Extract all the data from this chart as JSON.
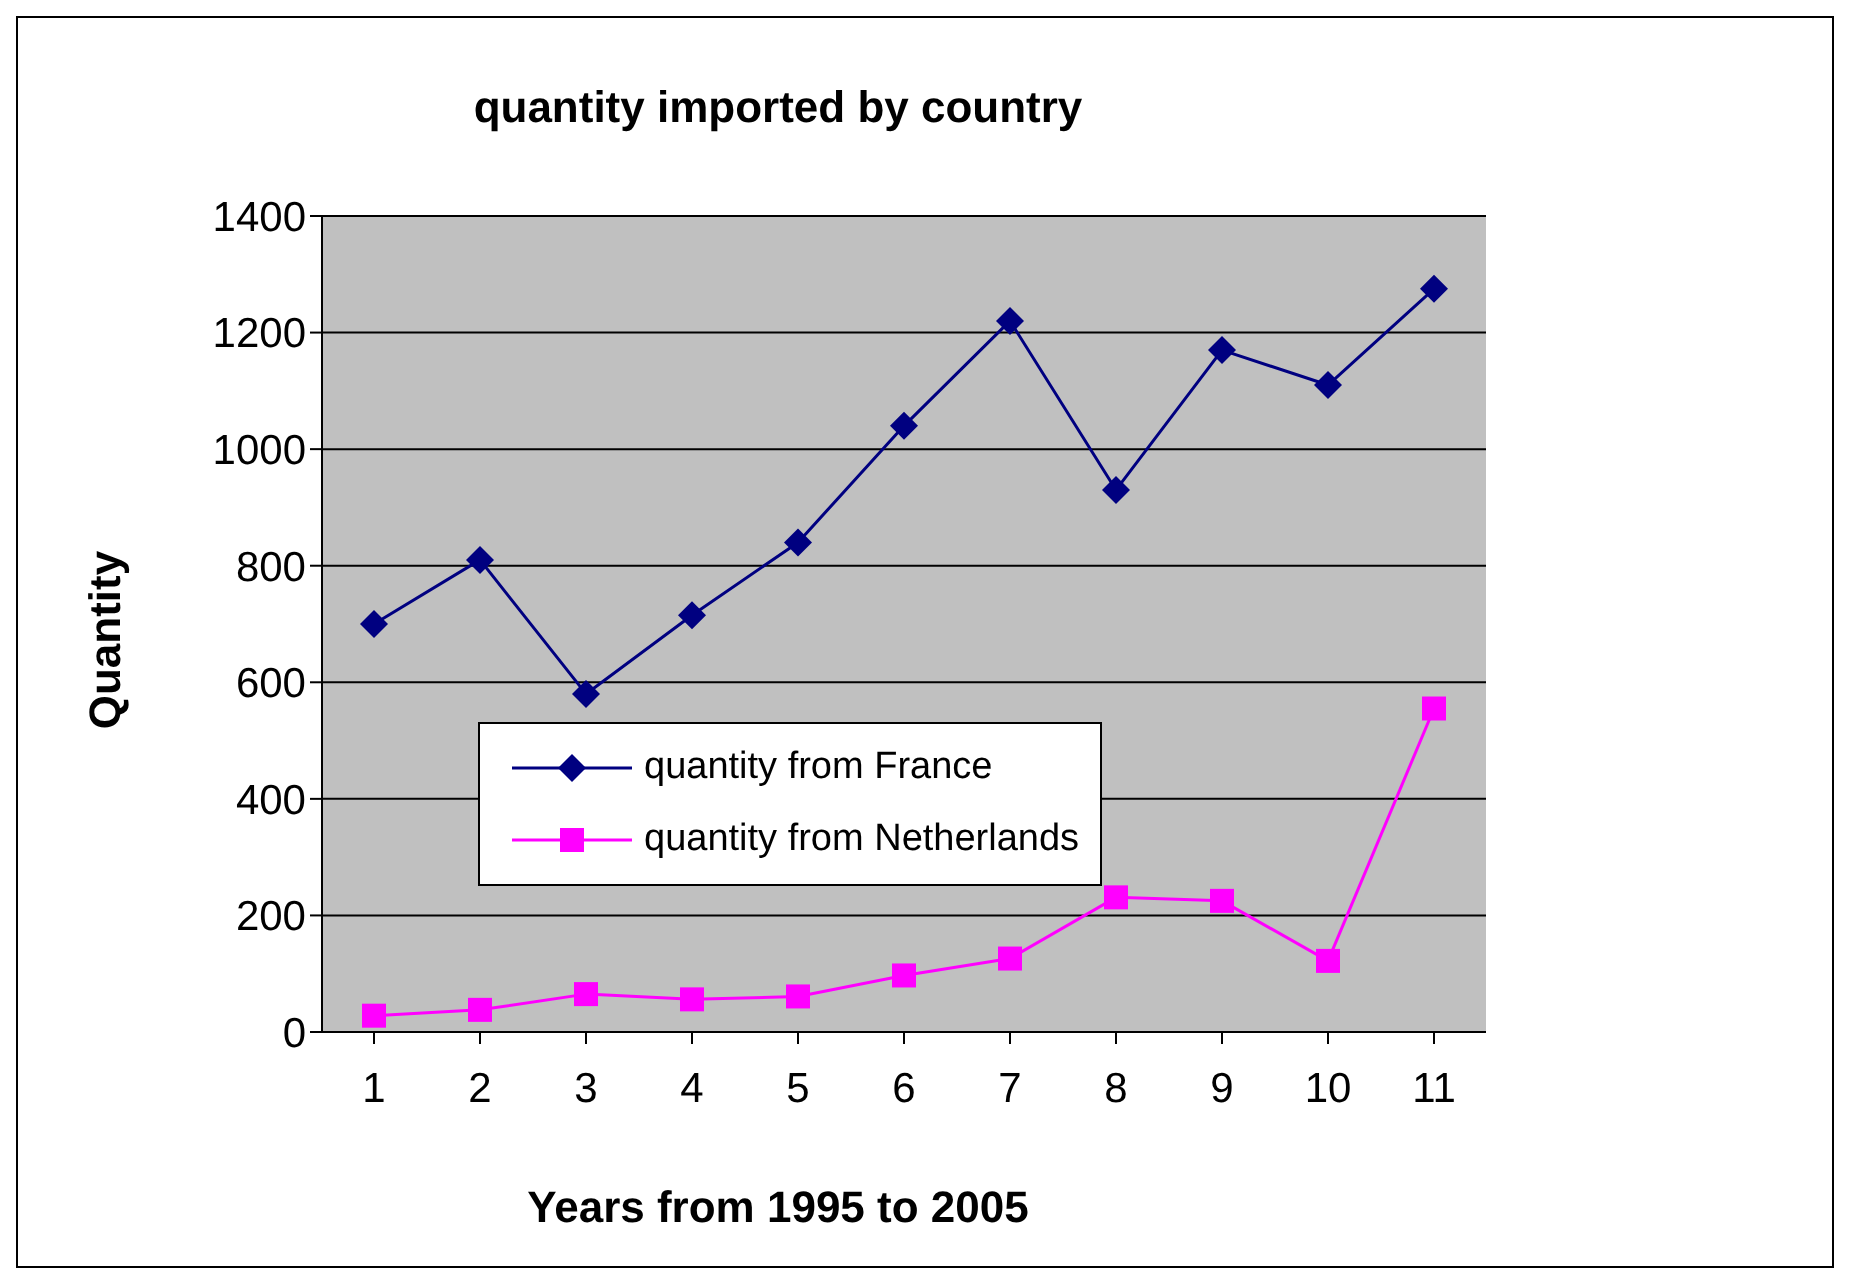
{
  "chart_data": {
    "type": "line",
    "title": "quantity imported by country",
    "xlabel": "Years from 1995 to 2005",
    "ylabel": "Quantity",
    "categories": [
      "1",
      "2",
      "3",
      "4",
      "5",
      "6",
      "7",
      "8",
      "9",
      "10",
      "11"
    ],
    "series": [
      {
        "name": "quantity from France",
        "color": "#000080",
        "marker": "diamond",
        "values": [
          700,
          810,
          580,
          715,
          840,
          1040,
          1220,
          930,
          1170,
          1110,
          1275
        ]
      },
      {
        "name": "quantity from Netherlands",
        "color": "#ff00ff",
        "marker": "square",
        "values": [
          28,
          38,
          65,
          56,
          61,
          97,
          126,
          231,
          225,
          122,
          555
        ]
      }
    ],
    "ylim": [
      0,
      1400
    ],
    "yticks": [
      0,
      200,
      400,
      600,
      800,
      1000,
      1200,
      1400
    ],
    "grid": "y",
    "legend": "left"
  }
}
